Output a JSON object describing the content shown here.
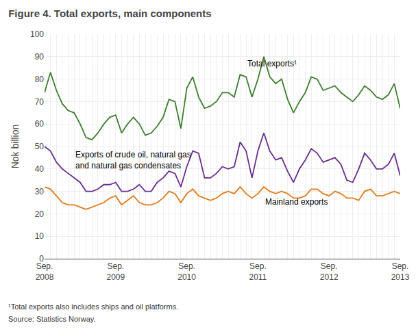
{
  "chart_data": {
    "type": "line",
    "title": "Figure 4. Total exports, main components",
    "ylabel": "Nok billion",
    "categories": [
      "Sep.\n2008",
      null,
      null,
      null,
      null,
      null,
      null,
      null,
      null,
      null,
      null,
      null,
      "Sep.\n2009",
      null,
      null,
      null,
      null,
      null,
      null,
      null,
      null,
      null,
      null,
      null,
      "Sep.\n2010",
      null,
      null,
      null,
      null,
      null,
      null,
      null,
      null,
      null,
      null,
      null,
      "Sep.\n2011",
      null,
      null,
      null,
      null,
      null,
      null,
      null,
      null,
      null,
      null,
      null,
      "Sep.\n2012",
      null,
      null,
      null,
      null,
      null,
      null,
      null,
      null,
      null,
      null,
      null,
      "Sep.\n2013"
    ],
    "series": [
      {
        "name": "Total exports¹",
        "color": "#3a7d2c",
        "values": [
          74,
          83,
          75,
          69,
          66,
          65,
          60,
          54,
          53,
          56,
          60,
          63,
          64,
          56,
          60,
          63,
          60,
          55,
          56,
          59,
          63,
          71,
          70,
          58,
          76,
          81,
          72,
          67,
          68,
          70,
          74,
          74,
          72,
          82,
          81,
          72,
          80,
          90,
          81,
          78,
          80,
          71,
          65,
          70,
          74,
          81,
          80,
          75,
          76,
          77,
          74,
          72,
          70,
          73,
          77,
          75,
          72,
          71,
          73,
          78,
          67
        ]
      },
      {
        "name": "Exports of crude oil, natural gas\nand natural gas condensates",
        "color": "#6b2c8e",
        "values": [
          50,
          48,
          43,
          40,
          38,
          36,
          34,
          30,
          30,
          31,
          33,
          33,
          34,
          30,
          30,
          31,
          33,
          30,
          30,
          34,
          36,
          39,
          38,
          32,
          41,
          48,
          47,
          36,
          36,
          38,
          41,
          40,
          41,
          52,
          48,
          36,
          48,
          56,
          48,
          44,
          45,
          39,
          34,
          40,
          44,
          49,
          47,
          43,
          44,
          45,
          42,
          35,
          34,
          40,
          47,
          44,
          40,
          40,
          42,
          47,
          37
        ]
      },
      {
        "name": "Mainland exports",
        "color": "#e07b1a",
        "values": [
          32,
          31,
          28,
          25,
          24,
          24,
          23,
          22,
          23,
          24,
          25,
          27,
          28,
          24,
          26,
          28,
          25,
          24,
          24,
          25,
          27,
          30,
          29,
          25,
          29,
          31,
          28,
          27,
          26,
          27,
          29,
          30,
          29,
          32,
          29,
          27,
          29,
          32,
          30,
          29,
          30,
          29,
          27,
          27,
          28,
          31,
          31,
          29,
          28,
          30,
          29,
          27,
          27,
          26,
          30,
          31,
          28,
          28,
          29,
          30,
          29
        ]
      }
    ],
    "annotations": [
      {
        "text": "Total exports¹",
        "x": 34,
        "y": 84
      },
      {
        "text": "Exports of crude oil, natural gas\nand natural gas condensates",
        "x": 5,
        "y": 49
      },
      {
        "text": "Mainland exports",
        "x": 37,
        "y": 28
      }
    ],
    "footnotes": [
      "¹Total exports also includes ships and oil platforms.",
      "Source: Statistics Norway."
    ],
    "ylim": [
      0,
      100
    ],
    "yticks": [
      0,
      10,
      20,
      30,
      40,
      50,
      60,
      70,
      80,
      90,
      100
    ],
    "grid": true
  }
}
